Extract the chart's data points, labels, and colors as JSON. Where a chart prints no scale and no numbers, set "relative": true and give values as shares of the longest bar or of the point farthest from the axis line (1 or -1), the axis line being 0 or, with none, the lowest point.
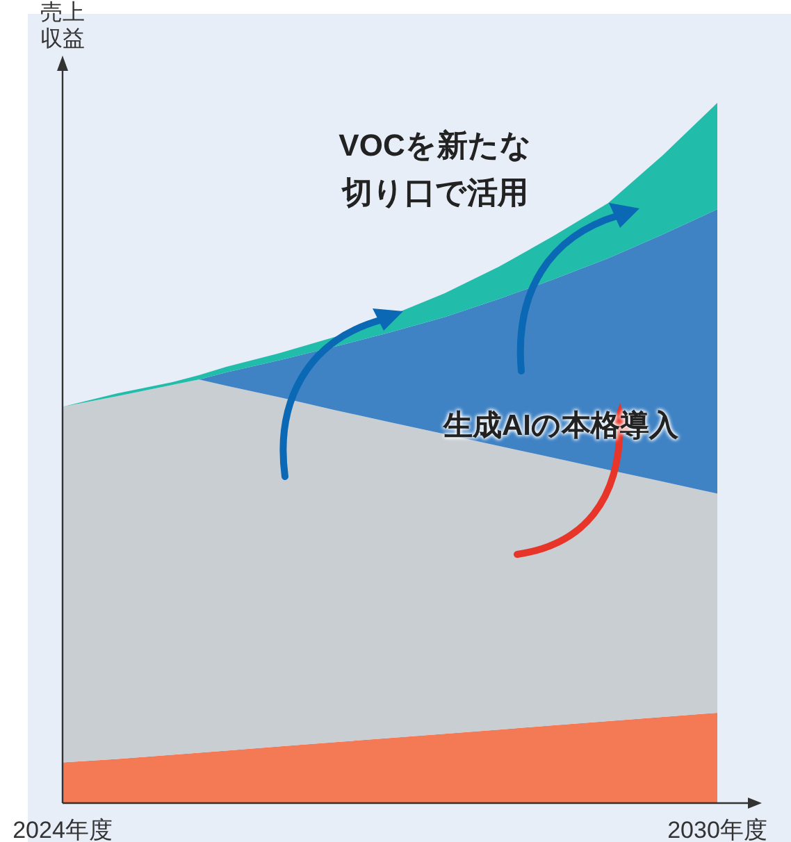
{
  "chart_data": {
    "type": "area",
    "stacked": true,
    "relative": true,
    "ylabel": "売上収益",
    "x": [
      2024,
      2024.5,
      2025,
      2025.25,
      2025.5,
      2026,
      2026.5,
      2027,
      2027.5,
      2028,
      2028.5,
      2029,
      2029.5,
      2030
    ],
    "xlim": [
      2024,
      2030
    ],
    "xticks": [
      {
        "value": 2024,
        "label": "2024年度"
      },
      {
        "value": 2030,
        "label": "2030年度"
      }
    ],
    "series": [
      {
        "color": "#f47a55",
        "values": [
          0.058,
          0.063,
          0.069,
          0.072,
          0.075,
          0.081,
          0.087,
          0.093,
          0.099,
          0.105,
          0.111,
          0.117,
          0.123,
          0.129
        ]
      },
      {
        "color": "#c9ced3",
        "values": [
          0.508,
          0.518,
          0.528,
          0.533,
          0.521,
          0.498,
          0.474,
          0.451,
          0.428,
          0.405,
          0.382,
          0.359,
          0.336,
          0.313
        ]
      },
      {
        "color": "#3f83c5",
        "values": [
          0,
          0,
          0,
          0,
          0.019,
          0.054,
          0.091,
          0.128,
          0.167,
          0.21,
          0.255,
          0.302,
          0.353,
          0.406
        ]
      },
      {
        "color": "#22bdaa",
        "values": [
          0,
          0.004,
          0.004,
          0.006,
          0.008,
          0.01,
          0.014,
          0.024,
          0.034,
          0.046,
          0.062,
          0.079,
          0.113,
          0.152
        ]
      }
    ],
    "annotations": [
      "VOCを新たな切り口で活用",
      "生成AIの本格導入"
    ]
  }
}
